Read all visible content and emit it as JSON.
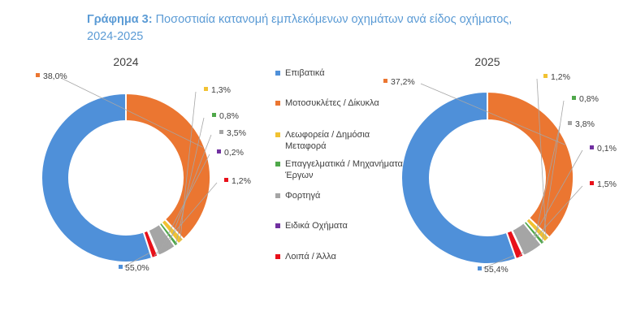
{
  "title": {
    "prefix": "Γράφημα 3:",
    "text": "Ποσοστιαία κατανομή εμπλεκόμενων οχημάτων ανά είδος οχήματος, 2024-2025"
  },
  "chart_data": [
    {
      "type": "donut",
      "title": "2024",
      "categories": [
        "Επιβατικά",
        "Μοτοσυκλέτες / Δίκυκλα",
        "Λεωφορεία / Δημόσια Μεταφορά",
        "Επαγγελματικά / Μηχανήματα Έργων",
        "Φορτηγά",
        "Ειδικά Οχήματα",
        "Λοιπά / Άλλα"
      ],
      "values": [
        55.0,
        38.0,
        1.3,
        0.8,
        3.5,
        0.2,
        1.2
      ],
      "labels": [
        "55,0%",
        "38,0%",
        "1,3%",
        "0,8%",
        "3,5%",
        "0,2%",
        "1,2%"
      ],
      "colors": [
        "#4f90d9",
        "#eb7631",
        "#f1c232",
        "#4fa84a",
        "#a5a5a5",
        "#7030a0",
        "#e8101a"
      ]
    },
    {
      "type": "donut",
      "title": "2025",
      "categories": [
        "Επιβατικά",
        "Μοτοσυκλέτες / Δίκυκλα",
        "Λεωφορεία / Δημόσια Μεταφορά",
        "Επαγγελματικά / Μηχανήματα Έργων",
        "Φορτηγά",
        "Ειδικά Οχήματα",
        "Λοιπά / Άλλα"
      ],
      "values": [
        55.4,
        37.2,
        1.2,
        0.8,
        3.8,
        0.1,
        1.5
      ],
      "labels": [
        "55,4%",
        "37,2%",
        "1,2%",
        "0,8%",
        "3,8%",
        "0,1%",
        "1,5%"
      ],
      "colors": [
        "#4f90d9",
        "#eb7631",
        "#f1c232",
        "#4fa84a",
        "#a5a5a5",
        "#7030a0",
        "#e8101a"
      ]
    }
  ],
  "legend": {
    "placement": "center",
    "items": [
      {
        "label": "Επιβατικά",
        "color": "#4f90d9"
      },
      {
        "label": "Μοτοσυκλέτες / Δίκυκλα",
        "color": "#eb7631"
      },
      {
        "label": "Λεωφορεία / Δημόσια Μεταφορά",
        "color": "#f1c232"
      },
      {
        "label": "Επαγγελματικά / Μηχανήματα Έργων",
        "color": "#4fa84a"
      },
      {
        "label": "Φορτηγά",
        "color": "#a5a5a5"
      },
      {
        "label": "Ειδικά Οχήματα",
        "color": "#7030a0"
      },
      {
        "label": "Λοιπά / Άλλα",
        "color": "#e8101a"
      }
    ]
  }
}
